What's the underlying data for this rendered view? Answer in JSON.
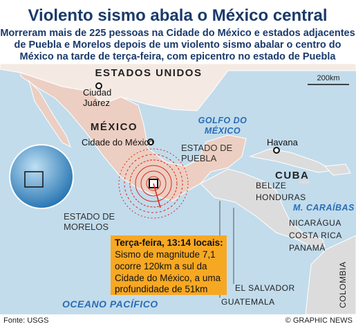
{
  "header": {
    "title": "Violento sismo abala o México central",
    "subtitle_lines": [
      "Morreram mais de 225 pessoas na Cidade do México e estados adjacentes",
      "de Puebla e Morelos depois de um violento sismo abalar o centro do",
      "México na tarde de terça-feira, com epicentro no estado de Puebla"
    ]
  },
  "map": {
    "labels": {
      "usa": "ESTADOS UNIDOS",
      "ciudad_juarez": [
        "Ciudad",
        "Juárez"
      ],
      "mexico": "MÉXICO",
      "mexico_city": "Cidade do México",
      "puebla": [
        "ESTADO DE",
        "PUEBLA"
      ],
      "morelos": [
        "ESTADO DE",
        "MORELOS"
      ],
      "gulf": [
        "GOLFO DO",
        "MÉXICO"
      ],
      "havana": "Havana",
      "cuba": "CUBA",
      "belize": "BELIZE",
      "honduras": "HONDURAS",
      "caribbean": "M. CARAÍBAS",
      "nicaragua": "NICARÁGUA",
      "costa_rica": "COSTA RICA",
      "panama": "PANAMÁ",
      "el_salvador": "EL SALVADOR",
      "guatemala": "GUATEMALA",
      "pacific": "OCEANO PACÍFICO",
      "colombia": "COLOMBIA"
    },
    "scale": "200km"
  },
  "callout": {
    "lines": [
      "Terça-feira, 13:14 locais:",
      "Sismo de magnitude 7,1",
      "ocorre 120km a sul da",
      "Cidade do México, a uma",
      "profundidade de 51km"
    ]
  },
  "footer": {
    "source": "Fonte: USGS",
    "credit": "© GRAPHIC NEWS"
  }
}
